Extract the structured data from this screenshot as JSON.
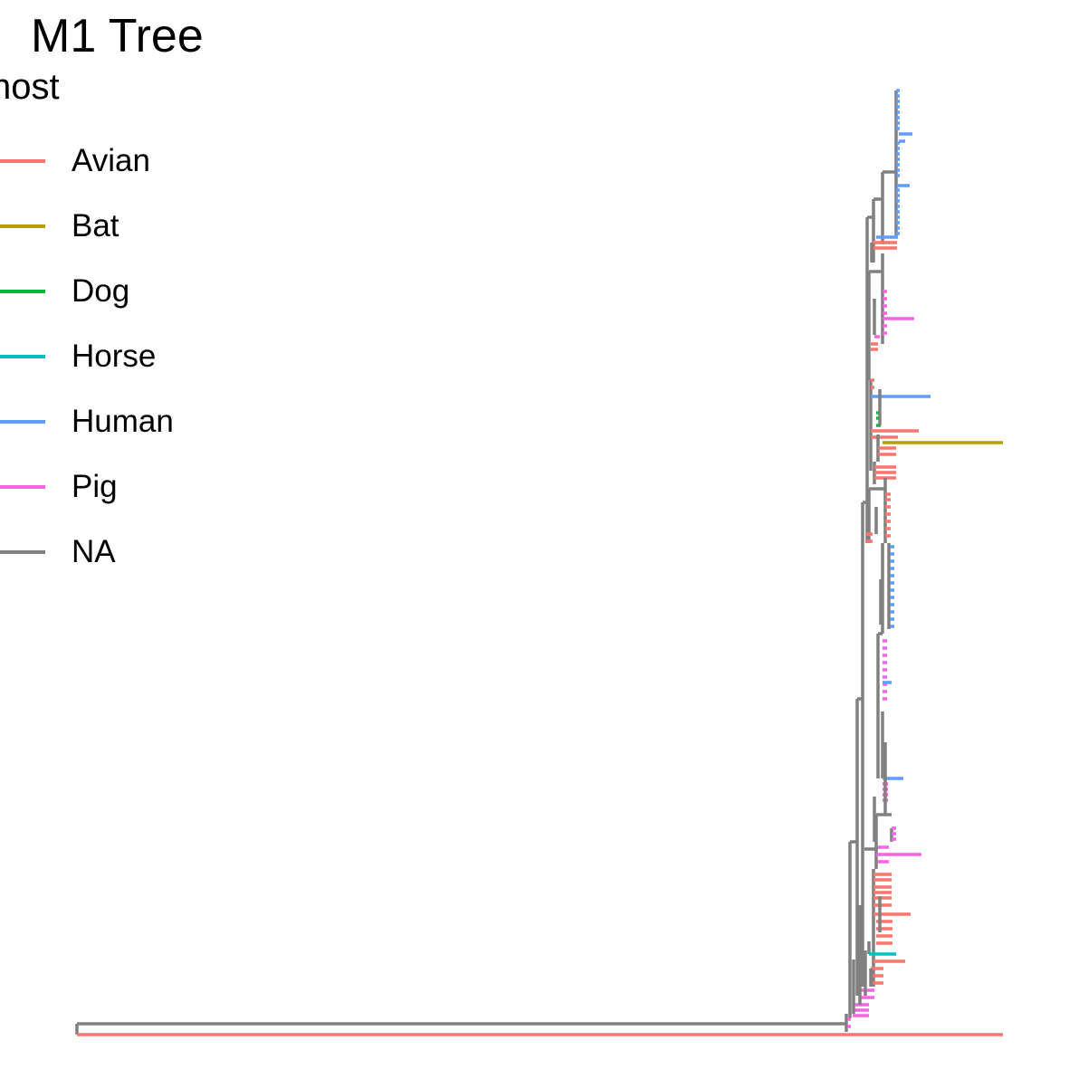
{
  "title": "M1 Tree",
  "legend": {
    "title": "host",
    "items": [
      {
        "label": "Avian",
        "color": "#F8766D"
      },
      {
        "label": "Bat",
        "color": "#B79F00"
      },
      {
        "label": "Dog",
        "color": "#00BA38"
      },
      {
        "label": "Horse",
        "color": "#00BFC4"
      },
      {
        "label": "Human",
        "color": "#619CFF"
      },
      {
        "label": "Pig",
        "color": "#F564E3"
      },
      {
        "label": "NA",
        "color": "#808080"
      }
    ]
  }
}
